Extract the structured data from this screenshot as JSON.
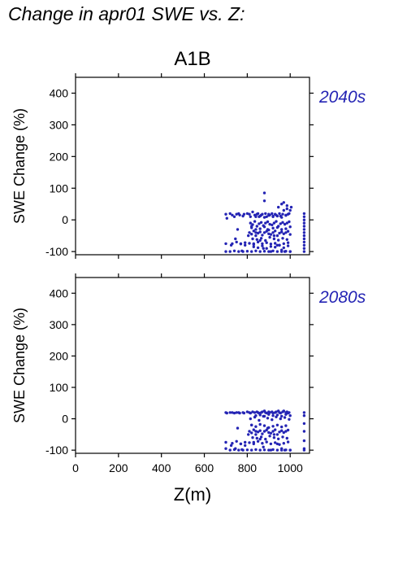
{
  "page": {
    "title": "Change in apr01 SWE vs. Z:"
  },
  "colors": {
    "points": "#2424b4",
    "period_label": "#2424b4",
    "axes": "#000000"
  },
  "chart_data": [
    {
      "type": "scatter",
      "title": "A1B",
      "panel_label": "2040s",
      "xlabel": "",
      "ylabel": "SWE Change (%)",
      "xlim": [
        0,
        1090
      ],
      "ylim": [
        -110,
        450
      ],
      "yticks": [
        -100,
        0,
        100,
        200,
        300,
        400
      ],
      "xticks": [
        0,
        200,
        400,
        600,
        800,
        1000
      ],
      "xticklabels_shown": false,
      "grid": false,
      "points_x": [
        700,
        700,
        700,
        705,
        720,
        725,
        730,
        740,
        745,
        750,
        755,
        760,
        765,
        770,
        775,
        780,
        785,
        790,
        800,
        805,
        810,
        815,
        820,
        825,
        830,
        835,
        840,
        845,
        850,
        855,
        860,
        865,
        870,
        875,
        880,
        885,
        890,
        895,
        900,
        905,
        910,
        915,
        920,
        925,
        930,
        935,
        940,
        945,
        950,
        955,
        960,
        965,
        970,
        975,
        980,
        985,
        990,
        995,
        1000,
        1005,
        720,
        740,
        760,
        780,
        800,
        820,
        840,
        860,
        880,
        900,
        920,
        940,
        960,
        980,
        1000,
        730,
        750,
        770,
        790,
        810,
        830,
        850,
        870,
        890,
        910,
        930,
        950,
        970,
        990,
        810,
        820,
        830,
        840,
        850,
        860,
        870,
        880,
        890,
        900,
        910,
        920,
        930,
        940,
        950,
        960,
        970,
        980,
        990,
        1000,
        815,
        825,
        835,
        845,
        855,
        865,
        875,
        885,
        895,
        905,
        915,
        925,
        935,
        945,
        955,
        965,
        975,
        985,
        995,
        820,
        840,
        860,
        880,
        900,
        920,
        940,
        960,
        980,
        1000,
        825,
        845,
        865,
        885,
        905,
        925,
        945,
        965,
        985,
        830,
        850,
        870,
        890,
        910,
        930,
        950,
        970,
        990,
        840,
        860,
        880,
        900,
        920,
        940,
        960,
        980,
        880,
        960,
        970,
        985,
        1000,
        1065,
        1065,
        1065,
        1065,
        1065,
        1065,
        1065,
        1065,
        1065,
        1065,
        1065,
        1065,
        1065
      ],
      "points_y": [
        18,
        -75,
        -100,
        5,
        20,
        -80,
        15,
        10,
        -60,
        18,
        -30,
        20,
        15,
        -75,
        -98,
        12,
        18,
        -80,
        20,
        -50,
        18,
        10,
        -20,
        25,
        -75,
        15,
        -40,
        18,
        20,
        10,
        -65,
        15,
        18,
        -90,
        85,
        20,
        10,
        -30,
        18,
        15,
        -100,
        20,
        12,
        -50,
        18,
        15,
        -80,
        40,
        20,
        12,
        -95,
        18,
        30,
        -100,
        15,
        45,
        18,
        20,
        -100,
        40,
        -100,
        -98,
        -100,
        -100,
        -99,
        -100,
        -98,
        -100,
        -99,
        -100,
        -98,
        -100,
        -100,
        -99,
        -100,
        -75,
        -70,
        -76,
        -72,
        -74,
        -78,
        -70,
        -75,
        -72,
        -76,
        -74,
        -80,
        -75,
        -72,
        -40,
        -45,
        -35,
        -50,
        -42,
        -38,
        -48,
        -40,
        -36,
        -44,
        -46,
        -40,
        -35,
        -50,
        -42,
        -38,
        -44,
        -40,
        -36,
        -46,
        -10,
        -15,
        -5,
        -20,
        -12,
        -8,
        -18,
        -10,
        -6,
        -14,
        -16,
        -10,
        -5,
        -20,
        -12,
        -8,
        -14,
        -10,
        -6,
        -25,
        -30,
        -28,
        -22,
        -32,
        -26,
        -24,
        -30,
        -28,
        -22,
        -60,
        -62,
        -58,
        -65,
        -55,
        -60,
        -64,
        -58,
        -62,
        -85,
        -88,
        -82,
        -90,
        -84,
        -86,
        -80,
        -88,
        -82,
        10,
        12,
        8,
        14,
        10,
        12,
        8,
        14,
        60,
        50,
        55,
        35,
        30,
        20,
        10,
        0,
        -10,
        -20,
        -30,
        -40,
        -50,
        -60,
        -70,
        -80,
        -90,
        -100
      ]
    },
    {
      "type": "scatter",
      "title": "",
      "panel_label": "2080s",
      "xlabel": "Z(m)",
      "ylabel": "SWE Change (%)",
      "xlim": [
        0,
        1090
      ],
      "ylim": [
        -110,
        450
      ],
      "yticks": [
        -100,
        0,
        100,
        200,
        300,
        400
      ],
      "xticks": [
        0,
        200,
        400,
        600,
        800,
        1000
      ],
      "xticklabels_shown": true,
      "grid": false,
      "points_x": [
        700,
        700,
        700,
        705,
        720,
        725,
        730,
        740,
        745,
        750,
        755,
        760,
        765,
        770,
        775,
        780,
        785,
        790,
        800,
        805,
        810,
        815,
        820,
        825,
        830,
        835,
        840,
        845,
        850,
        855,
        860,
        865,
        870,
        875,
        880,
        885,
        890,
        895,
        900,
        905,
        910,
        915,
        920,
        925,
        930,
        935,
        940,
        945,
        950,
        955,
        960,
        965,
        970,
        975,
        980,
        985,
        990,
        995,
        1000,
        720,
        740,
        760,
        780,
        800,
        820,
        840,
        860,
        880,
        900,
        920,
        940,
        960,
        980,
        1000,
        730,
        750,
        770,
        790,
        810,
        830,
        850,
        870,
        890,
        910,
        930,
        950,
        970,
        990,
        810,
        820,
        830,
        840,
        850,
        860,
        870,
        880,
        890,
        900,
        910,
        920,
        930,
        940,
        950,
        960,
        970,
        980,
        990,
        815,
        835,
        855,
        875,
        895,
        915,
        935,
        955,
        975,
        995,
        820,
        840,
        860,
        880,
        900,
        920,
        940,
        960,
        980,
        825,
        845,
        865,
        885,
        905,
        925,
        945,
        965,
        985,
        840,
        860,
        880,
        900,
        920,
        940,
        960,
        980,
        1000,
        1065,
        1065,
        1065,
        1065,
        1065,
        1065,
        1065
      ],
      "points_y": [
        20,
        -75,
        -95,
        18,
        20,
        -85,
        20,
        18,
        -95,
        20,
        -30,
        20,
        18,
        -80,
        -98,
        20,
        18,
        -85,
        22,
        -50,
        20,
        18,
        -20,
        22,
        -75,
        20,
        -40,
        22,
        20,
        18,
        -65,
        20,
        22,
        -90,
        25,
        20,
        18,
        -30,
        22,
        20,
        -100,
        22,
        18,
        -50,
        20,
        22,
        -80,
        25,
        20,
        18,
        -95,
        22,
        25,
        -100,
        20,
        22,
        18,
        20,
        -100,
        -100,
        -98,
        -100,
        -100,
        -99,
        -100,
        -98,
        -100,
        -99,
        -100,
        -98,
        -100,
        -100,
        -99,
        -100,
        -78,
        -72,
        -80,
        -75,
        -76,
        -80,
        -72,
        -78,
        -74,
        -80,
        -76,
        -82,
        -78,
        -74,
        -40,
        -45,
        -35,
        -50,
        -42,
        -38,
        -48,
        -40,
        -36,
        -44,
        -46,
        -40,
        -35,
        -50,
        -42,
        -38,
        -44,
        -40,
        -36,
        0,
        5,
        -5,
        8,
        2,
        -3,
        6,
        0,
        4,
        -2,
        -20,
        -25,
        -18,
        -22,
        -28,
        -24,
        -20,
        -26,
        -22,
        -60,
        -62,
        -58,
        -65,
        -55,
        -60,
        -64,
        -58,
        -62,
        10,
        12,
        8,
        14,
        10,
        12,
        8,
        14,
        10,
        20,
        10,
        -15,
        -40,
        -70,
        -95,
        -100
      ]
    }
  ]
}
